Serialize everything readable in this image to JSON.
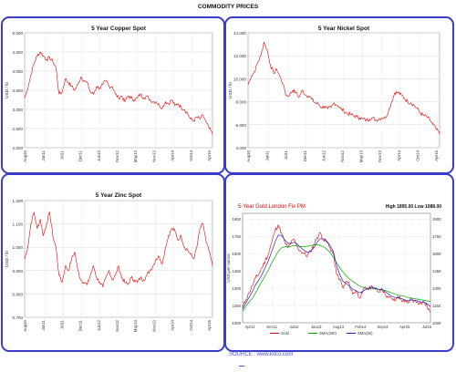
{
  "page_title": "COMMODITY PRICES",
  "source": "SOURCE : www.kitco.com",
  "chart_data": [
    {
      "id": "copper",
      "type": "line",
      "title": "5 Year Copper Spot",
      "ylabel": "USD / lb",
      "ylim": [
        2.0,
        5.0
      ],
      "yticks": [
        "2.000",
        "2.500",
        "3.000",
        "3.500",
        "4.000",
        "4.500",
        "5.000"
      ],
      "xticks": [
        "Aug10",
        "Jan11",
        "Jul11",
        "Dec11",
        "Jun12",
        "Nov12",
        "May13",
        "Nov13",
        "Apr14",
        "Oct14",
        "Apr15"
      ],
      "line_color": "#e60000",
      "x": [
        0,
        1,
        2,
        3,
        4,
        5,
        6,
        7,
        8,
        9,
        10,
        11,
        12,
        13,
        14,
        15,
        16,
        17,
        18,
        19,
        20,
        21,
        22,
        23,
        24,
        25,
        26,
        27,
        28,
        29,
        30,
        31,
        32,
        33,
        34,
        35,
        36,
        37,
        38,
        39,
        40,
        41,
        42,
        43,
        44,
        45,
        46,
        47,
        48,
        49,
        50,
        51,
        52,
        53,
        54,
        55,
        56,
        57,
        58,
        59,
        60
      ],
      "values": [
        3.3,
        3.55,
        3.9,
        4.2,
        4.4,
        4.5,
        4.4,
        4.3,
        4.35,
        4.25,
        4.1,
        3.4,
        3.45,
        3.8,
        3.7,
        3.6,
        3.5,
        3.65,
        3.85,
        3.75,
        3.7,
        3.45,
        3.4,
        3.6,
        3.55,
        3.65,
        3.75,
        3.6,
        3.6,
        3.4,
        3.3,
        3.35,
        3.2,
        3.35,
        3.3,
        3.25,
        3.3,
        3.4,
        3.3,
        3.35,
        3.25,
        3.2,
        3.2,
        3.1,
        3.05,
        3.2,
        3.15,
        3.25,
        3.1,
        3.15,
        3.05,
        3.0,
        2.9,
        2.75,
        2.7,
        2.8,
        2.75,
        2.85,
        2.65,
        2.5,
        2.35
      ]
    },
    {
      "id": "nickel",
      "type": "line",
      "title": "5 Year Nickel Spot",
      "ylabel": "USD / lb",
      "ylim": [
        4.0,
        14.0
      ],
      "yticks": [
        "4.000",
        "6.000",
        "8.000",
        "10.000",
        "12.000",
        "14.000"
      ],
      "xticks": [
        "Aug10",
        "Jan11",
        "Jul11",
        "Dec11",
        "Jun12",
        "Nov12",
        "May13",
        "Nov13",
        "Apr14",
        "Oct14",
        "Apr15"
      ],
      "line_color": "#e60000",
      "x": [
        0,
        1,
        2,
        3,
        4,
        5,
        6,
        7,
        8,
        9,
        10,
        11,
        12,
        13,
        14,
        15,
        16,
        17,
        18,
        19,
        20,
        21,
        22,
        23,
        24,
        25,
        26,
        27,
        28,
        29,
        30,
        31,
        32,
        33,
        34,
        35,
        36,
        37,
        38,
        39,
        40,
        41,
        42,
        43,
        44,
        45,
        46,
        47,
        48,
        49,
        50,
        51,
        52,
        53,
        54,
        55,
        56,
        57,
        58,
        59,
        60
      ],
      "values": [
        9.5,
        10.2,
        10.6,
        11.4,
        12.0,
        13.2,
        12.5,
        11.2,
        10.5,
        10.8,
        10.2,
        9.5,
        8.5,
        8.6,
        9.0,
        8.8,
        8.4,
        9.0,
        8.6,
        8.5,
        8.2,
        7.9,
        7.8,
        7.5,
        7.6,
        7.4,
        7.5,
        7.9,
        7.7,
        7.4,
        7.2,
        7.0,
        6.9,
        6.8,
        6.7,
        6.6,
        6.5,
        6.4,
        6.5,
        6.6,
        6.4,
        6.5,
        6.6,
        6.6,
        7.2,
        8.0,
        8.8,
        8.8,
        8.6,
        8.3,
        8.0,
        7.9,
        7.7,
        7.4,
        7.0,
        6.8,
        6.7,
        6.4,
        6.0,
        5.6,
        5.2
      ]
    },
    {
      "id": "zinc",
      "type": "line",
      "title": "5 Year Zinc Spot",
      "ylabel": "USD / lb",
      "ylim": [
        0.7,
        1.2
      ],
      "yticks": [
        "0.700",
        "0.800",
        "0.900",
        "1.000",
        "1.100",
        "1.200"
      ],
      "xticks": [
        "Aug10",
        "Jan11",
        "Jul11",
        "Dec11",
        "Jun12",
        "Nov12",
        "May13",
        "Nov13",
        "Apr14",
        "Oct14",
        "Apr15"
      ],
      "line_color": "#e60000",
      "x": [
        0,
        1,
        2,
        3,
        4,
        5,
        6,
        7,
        8,
        9,
        10,
        11,
        12,
        13,
        14,
        15,
        16,
        17,
        18,
        19,
        20,
        21,
        22,
        23,
        24,
        25,
        26,
        27,
        28,
        29,
        30,
        31,
        32,
        33,
        34,
        35,
        36,
        37,
        38,
        39,
        40,
        41,
        42,
        43,
        44,
        45,
        46,
        47,
        48,
        49,
        50,
        51,
        52,
        53,
        54,
        55,
        56,
        57,
        58,
        59,
        60
      ],
      "values": [
        0.95,
        1.0,
        1.1,
        1.15,
        1.08,
        1.12,
        1.05,
        1.1,
        1.15,
        1.05,
        1.0,
        0.88,
        0.85,
        0.92,
        0.9,
        0.95,
        0.98,
        0.9,
        0.86,
        0.85,
        0.84,
        0.88,
        0.92,
        0.87,
        0.85,
        0.83,
        0.87,
        0.9,
        0.86,
        0.88,
        0.92,
        0.87,
        0.85,
        0.84,
        0.87,
        0.86,
        0.85,
        0.87,
        0.86,
        0.88,
        0.9,
        0.92,
        0.95,
        0.96,
        0.93,
        1.0,
        1.05,
        1.08,
        1.07,
        1.03,
        1.05,
        1.0,
        0.99,
        0.97,
        0.95,
        1.0,
        1.08,
        1.1,
        1.02,
        0.98,
        0.92
      ]
    },
    {
      "id": "gold",
      "type": "line",
      "title": "5-Year Gold London Fix PM",
      "stats": "High 1895.00  Low 1088.00",
      "ylabel": "USD per ounce",
      "ylim": [
        1000,
        1950
      ],
      "yticks": [
        "1000",
        "1150",
        "1300",
        "1450",
        "1600",
        "1750",
        "1900"
      ],
      "xticks": [
        "Apr11",
        "Dec11",
        "Jul12",
        "Jan13",
        "Aug13",
        "Feb14",
        "Sep14",
        "Apr15",
        "Jul15"
      ],
      "legend": [
        "Gold",
        "SMA(200)",
        "SMA(50)"
      ],
      "series": [
        {
          "name": "Gold",
          "color": "#e60000",
          "values": [
            1130,
            1200,
            1260,
            1320,
            1390,
            1420,
            1480,
            1540,
            1600,
            1700,
            1800,
            1850,
            1780,
            1700,
            1650,
            1700,
            1720,
            1650,
            1620,
            1600,
            1580,
            1620,
            1680,
            1740,
            1780,
            1720,
            1700,
            1650,
            1600,
            1420,
            1380,
            1300,
            1360,
            1330,
            1250,
            1280,
            1220,
            1260,
            1310,
            1290,
            1320,
            1290,
            1270,
            1300,
            1250,
            1220,
            1210,
            1190,
            1230,
            1200,
            1180,
            1170,
            1210,
            1190,
            1180,
            1170,
            1180,
            1140,
            1090
          ]
        },
        {
          "name": "SMA(200)",
          "color": "#00aa00",
          "values": [
            1100,
            1140,
            1180,
            1210,
            1260,
            1310,
            1360,
            1410,
            1460,
            1520,
            1570,
            1620,
            1650,
            1660,
            1660,
            1665,
            1670,
            1665,
            1660,
            1660,
            1665,
            1670,
            1675,
            1680,
            1670,
            1660,
            1640,
            1610,
            1570,
            1520,
            1480,
            1440,
            1410,
            1380,
            1360,
            1340,
            1320,
            1310,
            1300,
            1300,
            1300,
            1295,
            1290,
            1285,
            1280,
            1270,
            1260,
            1250,
            1240,
            1235,
            1230,
            1220,
            1215,
            1210,
            1205,
            1200,
            1195,
            1190,
            1185
          ]
        },
        {
          "name": "SMA(50)",
          "color": "#2222cc",
          "values": [
            1120,
            1170,
            1220,
            1270,
            1330,
            1370,
            1420,
            1480,
            1540,
            1620,
            1700,
            1760,
            1760,
            1720,
            1690,
            1690,
            1700,
            1680,
            1650,
            1630,
            1610,
            1620,
            1650,
            1700,
            1730,
            1730,
            1710,
            1670,
            1620,
            1500,
            1420,
            1360,
            1340,
            1320,
            1290,
            1280,
            1260,
            1270,
            1290,
            1300,
            1310,
            1300,
            1290,
            1290,
            1270,
            1250,
            1230,
            1220,
            1220,
            1210,
            1200,
            1190,
            1200,
            1195,
            1190,
            1180,
            1180,
            1165,
            1140
          ]
        }
      ]
    }
  ]
}
